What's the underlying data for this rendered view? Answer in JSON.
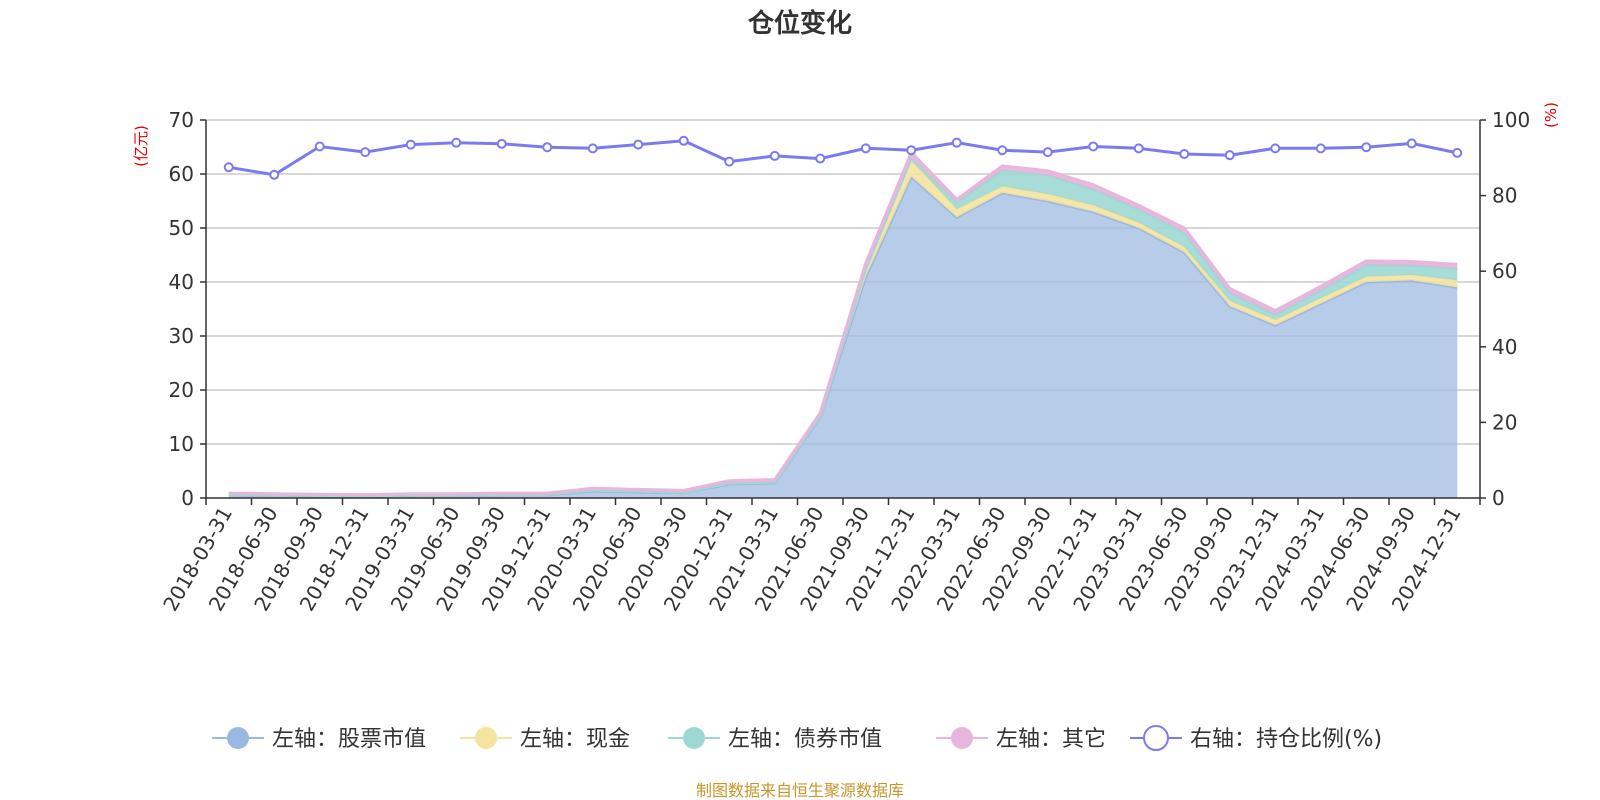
{
  "chart_data": {
    "type": "area",
    "title": "仓位变化",
    "y_left_unit": "(亿元)",
    "y_right_unit": "(%)",
    "y_left_ticks": [
      "0",
      "10",
      "20",
      "30",
      "40",
      "50",
      "60",
      "70"
    ],
    "y_right_ticks": [
      "0",
      "20",
      "40",
      "60",
      "80",
      "100"
    ],
    "y_left_range": [
      0,
      70
    ],
    "y_right_range": [
      0,
      100
    ],
    "grid": true,
    "legend_position": "bottom",
    "categories": [
      "2018-03-31",
      "2018-06-30",
      "2018-09-30",
      "2018-12-31",
      "2019-03-31",
      "2019-06-30",
      "2019-09-30",
      "2019-12-31",
      "2020-03-31",
      "2020-06-30",
      "2020-09-30",
      "2020-12-31",
      "2021-03-31",
      "2021-06-30",
      "2021-09-30",
      "2021-12-31",
      "2022-03-31",
      "2022-06-30",
      "2022-09-30",
      "2022-12-31",
      "2023-03-31",
      "2023-06-30",
      "2023-09-30",
      "2023-12-31",
      "2024-03-31",
      "2024-06-30",
      "2024-09-30",
      "2024-12-31"
    ],
    "series": [
      {
        "name": "左轴：股票市值",
        "axis": "left",
        "stack": true,
        "color": "#9bb8e0",
        "values": [
          0.6,
          0.5,
          0.4,
          0.3,
          0.5,
          0.5,
          0.6,
          0.6,
          1.3,
          1.1,
          1.0,
          2.6,
          2.8,
          15.0,
          41.0,
          59.5,
          52.0,
          56.5,
          55.0,
          53.0,
          50.0,
          45.5,
          35.5,
          32.0,
          36.0,
          40.0,
          40.3,
          39.0
        ]
      },
      {
        "name": "左轴：现金",
        "axis": "left",
        "stack": true,
        "color": "#f5e3a0",
        "values": [
          0.1,
          0.1,
          0.1,
          0.1,
          0.1,
          0.1,
          0.1,
          0.1,
          0.2,
          0.2,
          0.1,
          0.2,
          0.2,
          0.3,
          1.5,
          3.0,
          1.5,
          1.2,
          1.3,
          1.2,
          1.0,
          1.0,
          1.0,
          1.0,
          1.0,
          1.0,
          1.0,
          1.3
        ]
      },
      {
        "name": "左轴：债券市值",
        "axis": "left",
        "stack": true,
        "color": "#9dd8d4",
        "values": [
          0,
          0,
          0,
          0,
          0,
          0,
          0,
          0,
          0,
          0,
          0,
          0,
          0,
          0,
          0,
          0.5,
          1.3,
          3.0,
          3.5,
          3.0,
          2.5,
          2.7,
          1.5,
          1.0,
          1.5,
          2.2,
          1.8,
          2.2
        ]
      },
      {
        "name": "左轴：其它",
        "axis": "left",
        "stack": true,
        "color": "#e8b5dd",
        "values": [
          0.2,
          0.2,
          0.2,
          0.2,
          0.2,
          0.2,
          0.2,
          0.2,
          0.3,
          0.3,
          0.3,
          0.4,
          0.4,
          0.5,
          1.0,
          1.0,
          0.5,
          0.8,
          0.8,
          0.8,
          0.7,
          0.8,
          0.8,
          0.7,
          0.7,
          0.7,
          0.7,
          0.8
        ]
      },
      {
        "name": "右轴：持仓比例(%)",
        "axis": "right",
        "stack": false,
        "color": "#7b7bef",
        "values": [
          87.5,
          85.5,
          93.0,
          91.5,
          93.5,
          94.0,
          93.7,
          92.8,
          92.5,
          93.5,
          94.5,
          89.0,
          90.5,
          89.8,
          92.5,
          92.0,
          94.0,
          92.0,
          91.5,
          93.0,
          92.5,
          91.0,
          90.7,
          92.5,
          92.5,
          92.8,
          93.8,
          91.3
        ]
      }
    ]
  },
  "source_note": "制图数据来自恒生聚源数据库"
}
